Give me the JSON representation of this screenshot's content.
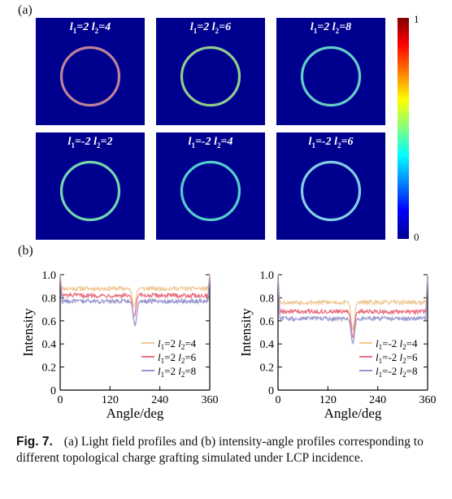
{
  "panel_a": {
    "label": "(a)",
    "images": [
      {
        "l1": "2",
        "l2": "4",
        "ring_color": "#c88a9a"
      },
      {
        "l1": "2",
        "l2": "6",
        "ring_color": "#9ad88a"
      },
      {
        "l1": "2",
        "l2": "8",
        "ring_color": "#6ad8c8"
      },
      {
        "l1": "-2",
        "l2": "2",
        "ring_color": "#7ae0b0"
      },
      {
        "l1": "-2",
        "l2": "4",
        "ring_color": "#5ad8d0"
      },
      {
        "l1": "-2",
        "l2": "6",
        "ring_color": "#8ad8e8"
      }
    ],
    "colorbar": {
      "max_label": "1",
      "min_label": "0"
    }
  },
  "panel_b": {
    "label": "(b)"
  },
  "chart_data": [
    {
      "type": "line",
      "xlabel": "Angle/deg",
      "ylabel": "Intensity",
      "xlim": [
        0,
        360
      ],
      "ylim": [
        0,
        1.0
      ],
      "xticks": [
        "0",
        "120",
        "240",
        "360"
      ],
      "yticks": [
        "0",
        "0.2",
        "0.4",
        "0.6",
        "0.8",
        "1.0"
      ],
      "legend_position": "lower-right",
      "series": [
        {
          "l1": "2",
          "l2": "4",
          "color": "#f0c896",
          "base": 0.88,
          "dip_center": 178,
          "dip_min": 0.72,
          "edge": 1.0
        },
        {
          "l1": "2",
          "l2": "6",
          "color": "#e87080",
          "base": 0.82,
          "dip_center": 178,
          "dip_min": 0.63,
          "edge": 0.99
        },
        {
          "l1": "2",
          "l2": "8",
          "color": "#9898d0",
          "base": 0.77,
          "dip_center": 180,
          "dip_min": 0.56,
          "edge": 0.98
        }
      ]
    },
    {
      "type": "line",
      "xlabel": "Angle/deg",
      "ylabel": "Intensity",
      "xlim": [
        0,
        360
      ],
      "ylim": [
        0,
        1.0
      ],
      "xticks": [
        "0",
        "120",
        "240",
        "360"
      ],
      "yticks": [
        "0",
        "0.2",
        "0.4",
        "0.6",
        "0.8",
        "1.0"
      ],
      "legend_position": "lower-right",
      "series": [
        {
          "l1": "-2",
          "l2": "4",
          "color": "#f0c896",
          "base": 0.76,
          "dip_center": 180,
          "dip_min": 0.52,
          "edge": 1.0
        },
        {
          "l1": "-2",
          "l2": "6",
          "color": "#e87080",
          "base": 0.68,
          "dip_center": 180,
          "dip_min": 0.45,
          "edge": 0.99
        },
        {
          "l1": "-2",
          "l2": "8",
          "color": "#9898d0",
          "base": 0.62,
          "dip_center": 180,
          "dip_min": 0.4,
          "edge": 0.98
        }
      ]
    }
  ],
  "caption": {
    "fig_label": "Fig. 7.",
    "text": "(a) Light field profiles and (b) intensity-angle profiles corresponding to different topological charge grafting simulated under LCP incidence."
  }
}
